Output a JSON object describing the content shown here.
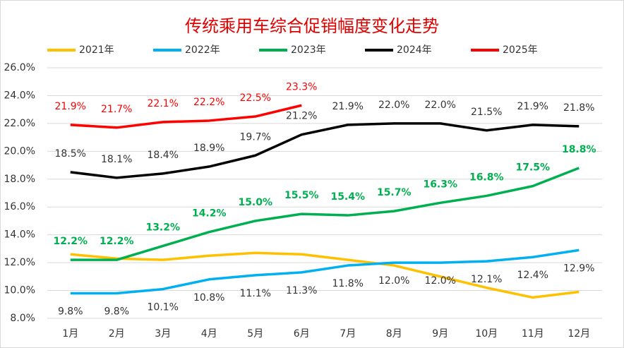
{
  "chart_data": {
    "type": "line",
    "title": "传统乘用车综合促销幅度变化走势",
    "categories": [
      "1月",
      "2月",
      "3月",
      "4月",
      "5月",
      "6月",
      "7月",
      "8月",
      "9月",
      "10月",
      "11月",
      "12月"
    ],
    "ylim": [
      8,
      26
    ],
    "yticks": [
      {
        "value": 8,
        "label": "8.0%"
      },
      {
        "value": 10,
        "label": "10.0%"
      },
      {
        "value": 12,
        "label": "12.0%"
      },
      {
        "value": 14,
        "label": "14.0%"
      },
      {
        "value": 16,
        "label": "16.0%"
      },
      {
        "value": 18,
        "label": "18.0%"
      },
      {
        "value": 20,
        "label": "20.0%"
      },
      {
        "value": 22,
        "label": "22.0%"
      },
      {
        "value": 24,
        "label": "24.0%"
      },
      {
        "value": 26,
        "label": "26.0%"
      }
    ],
    "grid": true,
    "series": [
      {
        "name": "2021年",
        "color": "#ffc000",
        "values": [
          12.6,
          12.3,
          12.2,
          12.5,
          12.7,
          12.6,
          12.2,
          11.8,
          11.0,
          10.2,
          9.5,
          9.9
        ]
      },
      {
        "name": "2022年",
        "color": "#00b0f0",
        "values": [
          9.8,
          9.8,
          10.1,
          10.8,
          11.1,
          11.3,
          11.8,
          12.0,
          12.0,
          12.1,
          12.4,
          12.9
        ],
        "value_labels": [
          "9.8%",
          "9.8%",
          "10.1%",
          "10.8%",
          "11.1%",
          "11.3%",
          "11.8%",
          "12.0%",
          "12.0%",
          "12.1%",
          "12.4%",
          "12.9%"
        ]
      },
      {
        "name": "2023年",
        "color": "#00b050",
        "values": [
          12.2,
          12.2,
          13.2,
          14.2,
          15.0,
          15.5,
          15.4,
          15.7,
          16.3,
          16.8,
          17.5,
          18.8
        ],
        "value_labels": [
          "12.2%",
          "12.2%",
          "13.2%",
          "14.2%",
          "15.0%",
          "15.5%",
          "15.4%",
          "15.7%",
          "16.3%",
          "16.8%",
          "17.5%",
          "18.8%"
        ]
      },
      {
        "name": "2024年",
        "color": "#000000",
        "values": [
          18.5,
          18.1,
          18.4,
          18.9,
          19.7,
          21.2,
          21.9,
          22.0,
          22.0,
          21.5,
          21.9,
          21.8
        ],
        "value_labels": [
          "18.5%",
          "18.1%",
          "18.4%",
          "18.9%",
          "19.7%",
          "21.2%",
          "21.9%",
          "22.0%",
          "22.0%",
          "21.5%",
          "21.9%",
          "21.8%"
        ]
      },
      {
        "name": "2025年",
        "color": "#ff0000",
        "values": [
          21.9,
          21.7,
          22.1,
          22.2,
          22.5,
          23.3,
          null,
          null,
          null,
          null,
          null,
          null
        ],
        "value_labels": [
          "21.9%",
          "21.7%",
          "22.1%",
          "22.2%",
          "22.5%",
          "23.3%",
          null,
          null,
          null,
          null,
          null,
          null
        ]
      }
    ]
  }
}
